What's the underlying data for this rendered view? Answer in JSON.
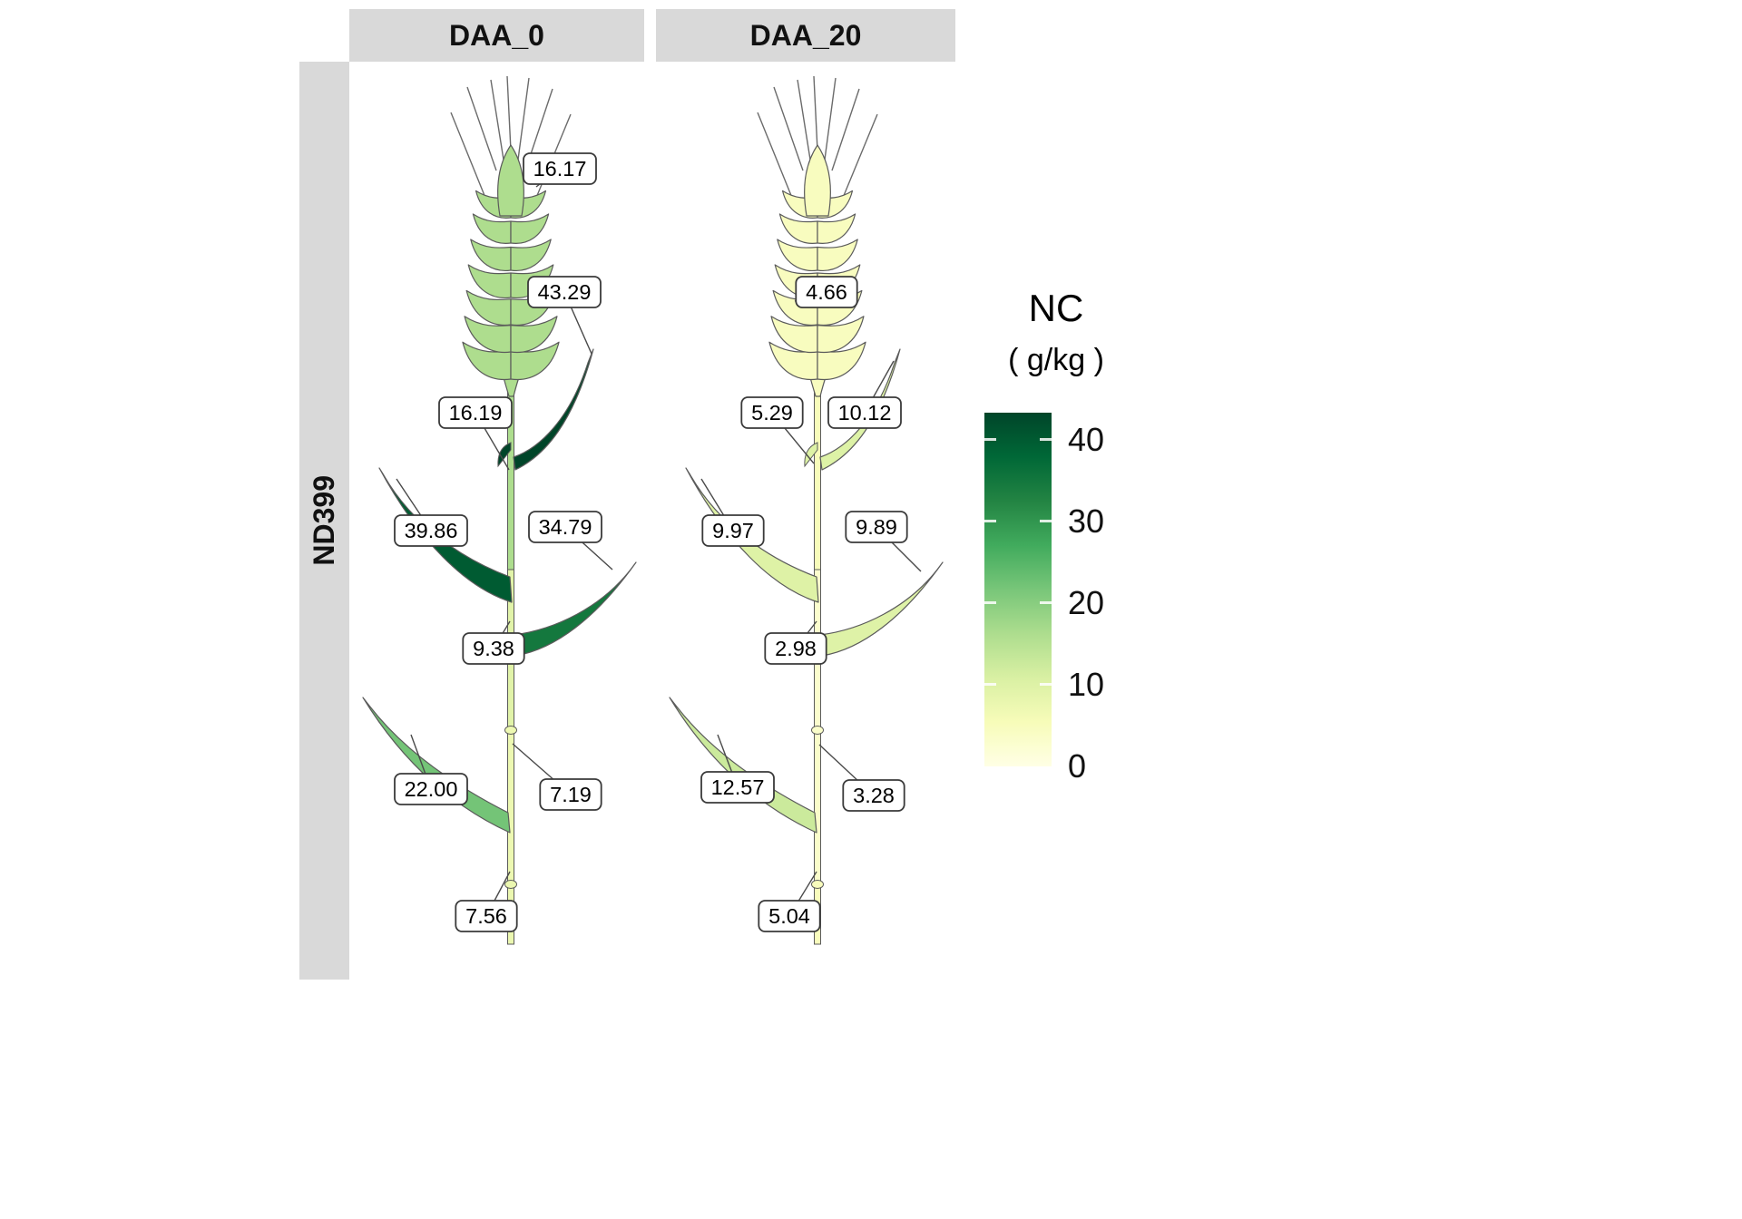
{
  "figure": {
    "row_label": "ND399",
    "color_scale": {
      "title": "NC",
      "subtitle": "( g/kg )",
      "ticks": [
        "40",
        "30",
        "20",
        "10",
        "0"
      ],
      "domain": [
        0,
        43.29
      ],
      "palette": [
        "#ffffe5",
        "#f7fcb9",
        "#d9f0a3",
        "#addd8e",
        "#78c679",
        "#41ab5d",
        "#238443",
        "#006837",
        "#004529"
      ]
    },
    "facets": [
      {
        "label": "DAA_0",
        "values": {
          "spike": 16.17,
          "flag_leaf": 43.29,
          "peduncle": 16.19,
          "upper_left_leaf": 39.86,
          "mid_right_leaf": 34.79,
          "internode_2": 9.38,
          "lower_left_leaf": 22.0,
          "internode_3": 7.19,
          "basal_internode": 7.56
        },
        "labels": {
          "spike": "16.17",
          "flag_leaf": "43.29",
          "peduncle": "16.19",
          "upper_left_leaf": "39.86",
          "mid_right_leaf": "34.79",
          "internode_2": "9.38",
          "lower_left_leaf": "22.00",
          "internode_3": "7.19",
          "basal_internode": "7.56"
        }
      },
      {
        "label": "DAA_20",
        "values": {
          "spike": 4.66,
          "flag_leaf": 10.12,
          "peduncle": 5.29,
          "upper_left_leaf": 9.97,
          "mid_right_leaf": 9.89,
          "internode_2": 2.98,
          "lower_left_leaf": 12.57,
          "internode_3": 3.28,
          "basal_internode": 5.04
        },
        "labels": {
          "spike": "4.66",
          "flag_leaf": "10.12",
          "peduncle": "5.29",
          "upper_left_leaf": "9.97",
          "mid_right_leaf": "9.89",
          "internode_2": "2.98",
          "lower_left_leaf": "12.57",
          "internode_3": "3.28",
          "basal_internode": "5.04"
        }
      }
    ]
  },
  "chart_data": {
    "type": "heatmap",
    "title": "",
    "facet_row": "ND399",
    "facet_cols": [
      "DAA_0",
      "DAA_20"
    ],
    "categories": [
      "spike",
      "flag leaf",
      "peduncle",
      "upper left leaf",
      "middle right leaf",
      "internode 2",
      "lower left leaf",
      "internode 3",
      "basal internode"
    ],
    "series": [
      {
        "name": "DAA_0",
        "values": [
          16.17,
          43.29,
          16.19,
          39.86,
          34.79,
          9.38,
          22.0,
          7.19,
          7.56
        ]
      },
      {
        "name": "DAA_20",
        "values": [
          4.66,
          10.12,
          5.29,
          9.97,
          9.89,
          2.98,
          12.57,
          3.28,
          5.04
        ]
      }
    ],
    "color_scale": {
      "palette": "YlGn",
      "label": "NC ( g/kg )",
      "domain": [
        0,
        43.29
      ],
      "ticks": [
        0,
        10,
        20,
        30,
        40
      ],
      "legend_position": "right"
    }
  }
}
